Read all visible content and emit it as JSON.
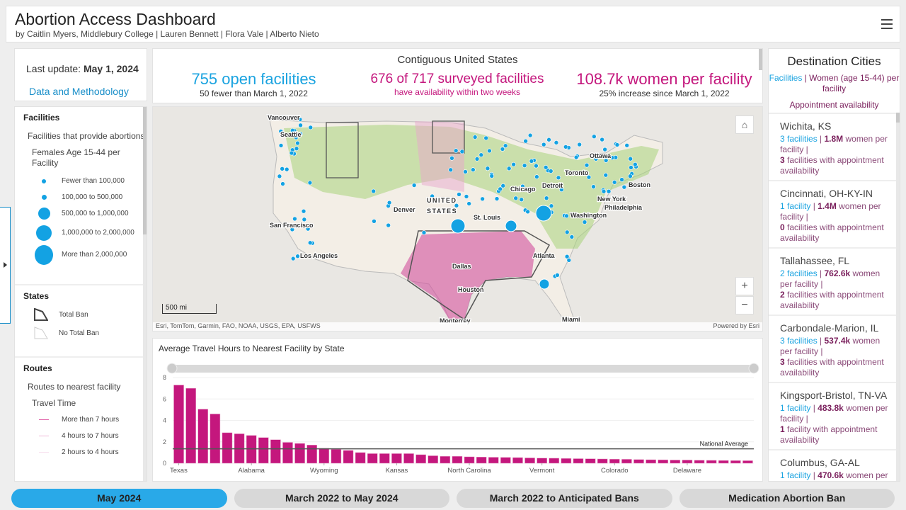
{
  "header": {
    "title": "Abortion Access Dashboard",
    "subtitle": "by Caitlin Myers, Middlebury College | Lauren Bennett | Flora Vale | Alberto Nieto"
  },
  "update": {
    "label": "Last update: ",
    "date": "May 1, 2024",
    "link": "Data and Methodology"
  },
  "legend": {
    "facilities": {
      "title": "Facilities",
      "sub": "Facilities that provide abortions",
      "subsub": "Females Age 15-44 per Facility",
      "classes": [
        "Fewer than 100,000",
        "100,000 to 500,000",
        "500,000 to 1,000,000",
        "1,000,000 to 2,000,000",
        "More than 2,000,000"
      ]
    },
    "states": {
      "title": "States",
      "items": [
        "Total Ban",
        "No Total Ban"
      ]
    },
    "routes": {
      "title": "Routes",
      "sub": "Routes to nearest facility",
      "subsub": "Travel Time",
      "items": [
        "More than 7 hours",
        "4 hours to 7 hours",
        "2 hours to 4 hours"
      ]
    }
  },
  "stats": {
    "title": "Contiguous United States",
    "s1": {
      "big": "755 open facilities",
      "small": "50 fewer than March 1, 2022"
    },
    "s2": {
      "big": "676 of 717 surveyed facilities",
      "small": "have availability within two weeks"
    },
    "s3": {
      "big": "108.7k women per facility",
      "small": "25% increase since March 1, 2022"
    }
  },
  "map": {
    "cities": [
      "Vancouver",
      "Seattle",
      "San Francisco",
      "Los Angeles",
      "Denver",
      "UNITED",
      "STATES",
      "Dallas",
      "Houston",
      "Monterrey",
      "St. Louis",
      "Chicago",
      "Detroit",
      "Toronto",
      "Ottawa",
      "Boston",
      "New York",
      "Philadelphia",
      "Washington",
      "Atlanta",
      "Miami"
    ],
    "scale": "500 mi",
    "attribution": "Esri, TomTom, Garmin, FAO, NOAA, USGS, EPA, USFWS",
    "powered": "Powered by Esri",
    "zoom_in": "+",
    "zoom_out": "−"
  },
  "colors": {
    "facility": "#13a2e3",
    "ban": "#c4177d",
    "appointment": "#7a1f5c",
    "active_tab": "#29a9e8"
  },
  "chart_data": {
    "type": "bar",
    "title": "Average Travel Hours to Nearest Facility by State",
    "ylim": [
      0,
      8
    ],
    "yticks": [
      0,
      2,
      4,
      6,
      8
    ],
    "tick_labels": [
      "Texas",
      "Alabama",
      "Wyoming",
      "Kansas",
      "North Carolina",
      "Vermont",
      "Colorado",
      "Delaware"
    ],
    "values": [
      7.3,
      7.0,
      5.05,
      4.6,
      2.85,
      2.75,
      2.6,
      2.4,
      2.2,
      1.95,
      1.85,
      1.7,
      1.4,
      1.3,
      1.2,
      1.0,
      0.9,
      0.9,
      0.9,
      0.9,
      0.8,
      0.7,
      0.65,
      0.65,
      0.6,
      0.58,
      0.56,
      0.55,
      0.53,
      0.5,
      0.48,
      0.47,
      0.45,
      0.43,
      0.42,
      0.4,
      0.38,
      0.37,
      0.35,
      0.33,
      0.32,
      0.3,
      0.3,
      0.28,
      0.27,
      0.26,
      0.25,
      0.24
    ],
    "reference": {
      "label": "National Average",
      "value": 1.35
    },
    "grid": true
  },
  "right": {
    "title": "Destination Cities",
    "key_fac": "Facilities",
    "key_women": "Women (age 15-44) per facility",
    "key_app": "Appointment availability",
    "cities": [
      {
        "name": "Wichita, KS",
        "fac": "3 facilities",
        "women": "1.8M",
        "app": "3",
        "app_text": "facilities with appointment availability"
      },
      {
        "name": "Cincinnati, OH-KY-IN",
        "fac": "1 facility",
        "women": "1.4M",
        "app": "0",
        "app_text": "facilities with appointment availability"
      },
      {
        "name": "Tallahassee, FL",
        "fac": "2 facilities",
        "women": "762.6k",
        "app": "2",
        "app_text": "facilities with appointment availability"
      },
      {
        "name": "Carbondale-Marion, IL",
        "fac": "3 facilities",
        "women": "537.4k",
        "app": "3",
        "app_text": "facilities with appointment availability"
      },
      {
        "name": "Kingsport-Bristol, TN-VA",
        "fac": "1 facility",
        "women": "483.8k",
        "app": "1",
        "app_text": "facility with appointment availability"
      },
      {
        "name": "Columbus, GA-AL",
        "fac": "1 facility",
        "women": "470.6k",
        "app": "",
        "app_text": ""
      }
    ],
    "women_suffix": " women per facility |"
  },
  "tabs": [
    "May 2024",
    "March 2022 to May 2024",
    "March 2022 to Anticipated Bans",
    "Medication Abortion Ban"
  ]
}
